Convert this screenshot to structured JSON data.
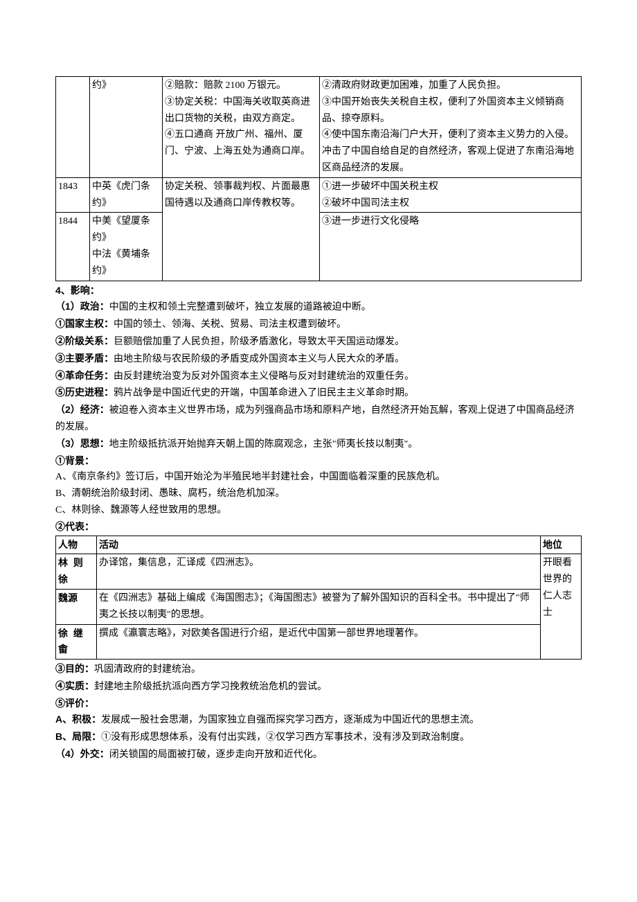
{
  "table1": {
    "rows": [
      {
        "year": "",
        "treaty": "约》",
        "content": "②赔款：赔款 2100 万银元。\n③协定关税：中国海关收取英商进出口货物的关税，由双方商定。\n④五口通商 开放广州、福州、厦门、宁波、上海五处为通商口岸。",
        "impact": "②清政府财政更加困难，加重了人民负担。\n③中国开始丧失关税自主权，便利了外国资本主义倾销商品、掠夺原料。\n④使中国东南沿海门户大开，便利了资本主义势力的入侵。冲击了中国自给自足的自然经济，客观上促进了东南沿海地区商品经济的发展。"
      },
      {
        "year": "1843",
        "treaty": "中英《虎门条约》",
        "content": "协定关税、领事裁判权、片面最惠国待遇以及通商口岸传教权等。",
        "impact": "①进一步破坏中国关税主权\n②破坏中国司法主权"
      },
      {
        "year": "1844",
        "treaty": "中美《望厦条约》\n中法《黄埔条约》",
        "content": "",
        "impact": "③进一步进行文化侵略"
      }
    ]
  },
  "section4_title": "4、影响：",
  "p_politics_head": "（1）政治：",
  "p_politics": "中国的主权和领土完整遭到破坏，独立发展的道路被迫中断。",
  "p_sov_head": "①国家主权：",
  "p_sov": "中国的领土、领海、关税、贸易、司法主权遭到破坏。",
  "p_class_head": "②阶级关系：",
  "p_class": "巨额赔偿加重了人民负担，阶级矛盾激化，导致太平天国运动爆发。",
  "p_contra_head": "③主要矛盾：",
  "p_contra": "由地主阶级与农民阶级的矛盾变成外国资本主义与人民大众的矛盾。",
  "p_task_head": "④革命任务：",
  "p_task": "由反封建统治变为反对外国资本主义侵略与反对封建统治的双重任务。",
  "p_hist_head": "⑤历史进程：",
  "p_hist": "鸦片战争是中国近代史的开端，中国革命进入了旧民主主义革命时期。",
  "p_econ_head": "（2）经济：",
  "p_econ": "被迫卷入资本主义世界市场，成为列强商品市场和原料产地，自然经济开始瓦解，客观上促进了中国商品经济的发展。",
  "p_thought_head": "（3）思想：",
  "p_thought": "地主阶级抵抗派开始抛弃天朝上国的陈腐观念，主张\"师夷长技以制夷\"。",
  "p_bg_head": "①背景：",
  "p_bg_a": "A、《南京条约》签订后，中国开始沦为半殖民地半封建社会，中国面临着深重的民族危机。",
  "p_bg_b": "B、清朝统治阶级封闭、愚昧、腐朽，统治危机加深。",
  "p_bg_c": "C、林则徐、魏源等人经世致用的思想。",
  "p_rep_head": "②代表：",
  "table2": {
    "headers": {
      "person": "人物",
      "activity": "活动",
      "status": "地位"
    },
    "rows": [
      {
        "person": "林 则徐",
        "activity": "办译馆，集信息，汇译成《四洲志》。"
      },
      {
        "person": "魏源",
        "activity": "在《四洲志》基础上编成《海国图志》；《海国图志》被誉为了解外国知识的百科全书。书中提出了\"师夷之长技以制夷\"的思想。"
      },
      {
        "person": "徐 继畬",
        "activity": "撰成《瀛寰志略》，对欧美各国进行介绍，是近代中国第一部世界地理著作。"
      }
    ],
    "status_text": "开眼看世界的仁人志士"
  },
  "p_purpose_head": "③目的：",
  "p_purpose": "巩固清政府的封建统治。",
  "p_essence_head": "④实质：",
  "p_essence": "封建地主阶级抵抗派向西方学习挽救统治危机的尝试。",
  "p_eval_head": "⑤评价：",
  "p_pos_head": "A、积极：",
  "p_pos": "发展成一股社会思潮，为国家独立自强而探究学习西方，逐渐成为中国近代的思想主流。",
  "p_lim_head": "B、局限：",
  "p_lim": "①没有形成思想体系，没有付出实践，②仅学习西方军事技术，没有涉及到政治制度。",
  "p_dip_head": "（4）外交：",
  "p_dip": "闭关锁国的局面被打破，逐步走向开放和近代化。"
}
